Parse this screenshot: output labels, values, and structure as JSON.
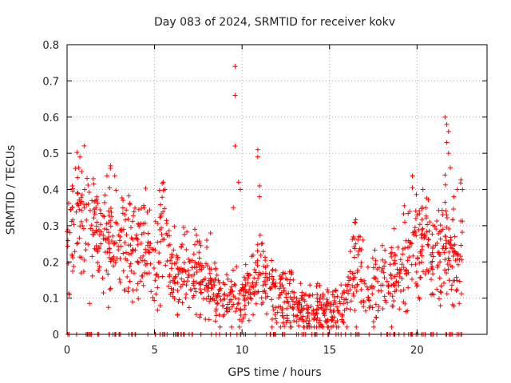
{
  "chart_data": {
    "type": "scatter",
    "title": "Day 083 of 2024, SRMTID for receiver kokv",
    "xlabel": "GPS time / hours",
    "ylabel": "SRMTID / TECUs",
    "xlim": [
      0,
      24
    ],
    "ylim": [
      0,
      0.8
    ],
    "xticks": [
      0,
      5,
      10,
      15,
      20
    ],
    "yticks": [
      0,
      0.1,
      0.2,
      0.3,
      0.4,
      0.5,
      0.6,
      0.7,
      0.8
    ],
    "xtick_labels": [
      "0",
      "5",
      "10",
      "15",
      "20"
    ],
    "ytick_labels": [
      "0",
      "0.1",
      "0.2",
      "0.3",
      "0.4",
      "0.5",
      "0.6",
      "0.7",
      "0.8"
    ],
    "grid": true,
    "marker": "plus",
    "series": [
      {
        "name": "SRMTID",
        "color": "#ff0000",
        "trend": [
          [
            0.0,
            0.28
          ],
          [
            0.5,
            0.31
          ],
          [
            1.0,
            0.32
          ],
          [
            1.5,
            0.29
          ],
          [
            2.0,
            0.26
          ],
          [
            2.5,
            0.27
          ],
          [
            3.0,
            0.26
          ],
          [
            3.5,
            0.24
          ],
          [
            4.0,
            0.24
          ],
          [
            4.5,
            0.24
          ],
          [
            5.0,
            0.16
          ],
          [
            5.5,
            0.3
          ],
          [
            6.0,
            0.16
          ],
          [
            6.5,
            0.17
          ],
          [
            7.0,
            0.15
          ],
          [
            7.5,
            0.17
          ],
          [
            8.0,
            0.15
          ],
          [
            8.5,
            0.1
          ],
          [
            9.0,
            0.1
          ],
          [
            9.5,
            0.1
          ],
          [
            10.0,
            0.1
          ],
          [
            10.5,
            0.12
          ],
          [
            11.0,
            0.17
          ],
          [
            11.5,
            0.13
          ],
          [
            12.0,
            0.1
          ],
          [
            12.5,
            0.1
          ],
          [
            13.0,
            0.08
          ],
          [
            13.5,
            0.07
          ],
          [
            14.0,
            0.07
          ],
          [
            14.5,
            0.07
          ],
          [
            15.0,
            0.06
          ],
          [
            15.5,
            0.07
          ],
          [
            16.0,
            0.09
          ],
          [
            16.5,
            0.2
          ],
          [
            17.0,
            0.15
          ],
          [
            17.5,
            0.12
          ],
          [
            18.0,
            0.14
          ],
          [
            18.5,
            0.15
          ],
          [
            19.0,
            0.17
          ],
          [
            19.5,
            0.22
          ],
          [
            20.0,
            0.26
          ],
          [
            20.5,
            0.24
          ],
          [
            21.0,
            0.22
          ],
          [
            21.5,
            0.26
          ],
          [
            22.0,
            0.2
          ],
          [
            22.3,
            0.21
          ],
          [
            22.6,
            0.26
          ]
        ],
        "spikes": [
          [
            0.3,
            0.41
          ],
          [
            0.6,
            0.39
          ],
          [
            1.0,
            0.4
          ],
          [
            1.5,
            0.43
          ],
          [
            1.7,
            0.38
          ],
          [
            3.2,
            0.37
          ],
          [
            4.4,
            0.35
          ],
          [
            5.5,
            0.42
          ],
          [
            5.6,
            0.4
          ],
          [
            7.3,
            0.29
          ],
          [
            8.2,
            0.28
          ],
          [
            9.6,
            0.74
          ],
          [
            9.6,
            0.66
          ],
          [
            9.6,
            0.52
          ],
          [
            9.5,
            0.35
          ],
          [
            9.8,
            0.42
          ],
          [
            9.9,
            0.4
          ],
          [
            10.9,
            0.51
          ],
          [
            10.9,
            0.49
          ],
          [
            11.0,
            0.41
          ],
          [
            11.0,
            0.38
          ],
          [
            16.5,
            0.25
          ],
          [
            19.3,
            0.31
          ],
          [
            20.0,
            0.33
          ],
          [
            20.5,
            0.35
          ],
          [
            21.6,
            0.6
          ],
          [
            21.7,
            0.58
          ],
          [
            21.8,
            0.56
          ],
          [
            21.7,
            0.53
          ],
          [
            21.8,
            0.5
          ],
          [
            21.9,
            0.46
          ],
          [
            21.6,
            0.44
          ],
          [
            22.3,
            0.4
          ],
          [
            22.6,
            0.4
          ],
          [
            22.1,
            0.38
          ]
        ],
        "zero_range": [
          0.0,
          22.6
        ]
      }
    ]
  }
}
